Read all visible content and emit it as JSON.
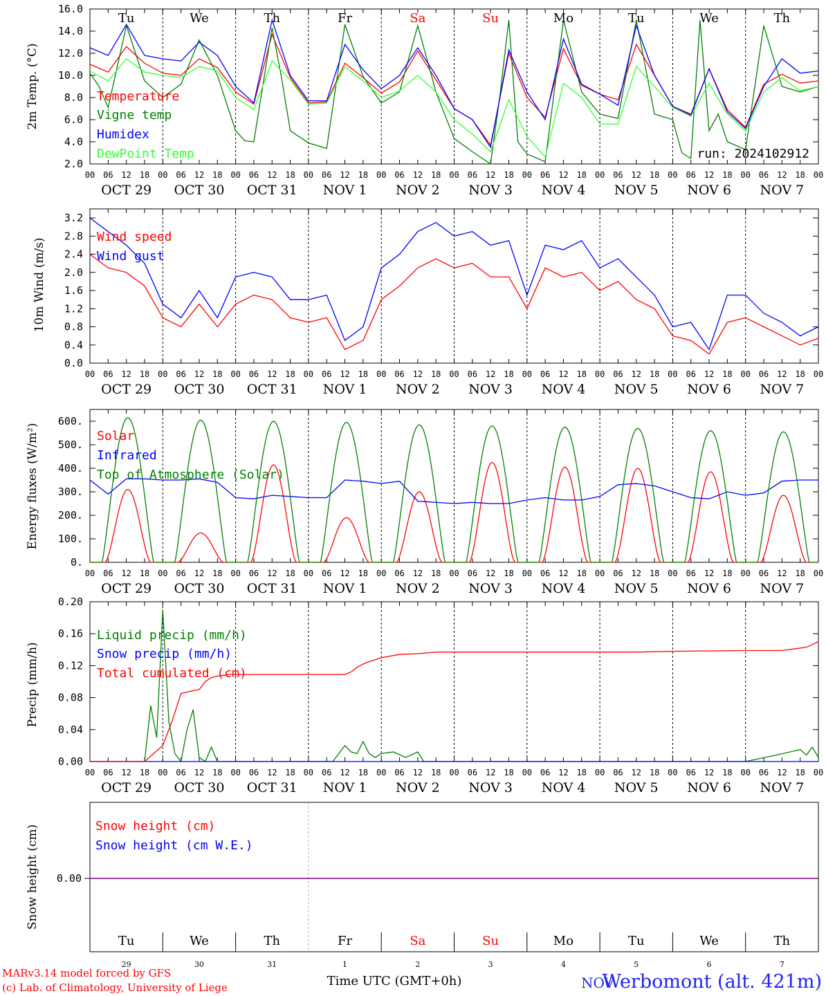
{
  "days": [
    {
      "abbr": "Tu",
      "date": "OCT 29",
      "num": "29",
      "weekend": false
    },
    {
      "abbr": "We",
      "date": "OCT 30",
      "num": "30",
      "weekend": false
    },
    {
      "abbr": "Th",
      "date": "OCT 31",
      "num": "31",
      "weekend": false
    },
    {
      "abbr": "Fr",
      "date": "NOV  1",
      "num": "1",
      "weekend": false
    },
    {
      "abbr": "Sa",
      "date": "NOV  2",
      "num": "2",
      "weekend": true
    },
    {
      "abbr": "Su",
      "date": "NOV  3",
      "num": "3",
      "weekend": true
    },
    {
      "abbr": "Mo",
      "date": "NOV  4",
      "num": "4",
      "weekend": false
    },
    {
      "abbr": "Tu",
      "date": "NOV  5",
      "num": "5",
      "weekend": false
    },
    {
      "abbr": "We",
      "date": "NOV  6",
      "num": "6",
      "weekend": false
    },
    {
      "abbr": "Th",
      "date": "NOV  7",
      "num": "7",
      "weekend": false
    }
  ],
  "hour_ticks": [
    "00",
    "06",
    "12",
    "18"
  ],
  "colors": {
    "red": "#ff0000",
    "green": "#008000",
    "blue": "#0000ff",
    "lightgreen": "#33ff33",
    "purple": "#7f007f",
    "weekend": "#ff0000"
  },
  "run_label": "run: 2024102912",
  "x_axis_title": "Time UTC (GMT+0h)",
  "footer": {
    "line1": "MARv3.14 model forced by GFS",
    "line2": "(c) Lab. of Climatology, University of Liege"
  },
  "station": "Werbomont (alt. 421m)",
  "station_overlap": "NOV",
  "chart_data": [
    {
      "id": "temp",
      "type": "line",
      "ylabel": "2m Temp. (°C)",
      "ylim": [
        2,
        16
      ],
      "yticks": [
        "16.0",
        "14.0",
        "12.0",
        "10.0",
        "8.0",
        "6.0",
        "4.0",
        "2.0"
      ],
      "x_unit": "hours from OCT 29 00 UTC",
      "series": [
        {
          "name": "Temperature",
          "color": "red",
          "x": [
            0,
            6,
            12,
            18,
            24,
            30,
            36,
            42,
            48,
            54,
            60,
            66,
            72,
            78,
            84,
            90,
            96,
            102,
            108,
            114,
            120,
            126,
            132,
            138,
            144,
            150,
            156,
            162,
            168,
            174,
            180,
            186,
            192,
            198,
            204,
            210,
            216,
            222,
            228,
            234,
            240
          ],
          "values": [
            11.0,
            10.3,
            12.6,
            11.1,
            10.2,
            10.0,
            11.5,
            10.7,
            8.5,
            7.4,
            13.7,
            9.8,
            7.5,
            7.6,
            11.1,
            9.8,
            8.4,
            9.4,
            12.2,
            9.6,
            7.0,
            6.0,
            3.7,
            12.0,
            8.0,
            6.2,
            12.4,
            9.1,
            8.3,
            7.8,
            12.8,
            10.0,
            7.2,
            6.5,
            10.6,
            6.9,
            5.3,
            9.2,
            10.1,
            9.3,
            9.5
          ]
        },
        {
          "name": "Vigne temp",
          "color": "green",
          "x": [
            0,
            3,
            6,
            12,
            18,
            24,
            30,
            36,
            42,
            48,
            51,
            54,
            60,
            63,
            66,
            72,
            78,
            84,
            90,
            96,
            102,
            108,
            114,
            120,
            126,
            132,
            135,
            138,
            141,
            144,
            150,
            156,
            162,
            168,
            174,
            180,
            186,
            192,
            195,
            198,
            201,
            204,
            207,
            210,
            216,
            222,
            228,
            234,
            240
          ],
          "values": [
            10.2,
            9.0,
            7.1,
            14.5,
            9.5,
            8.0,
            9.2,
            13.2,
            10.0,
            5.0,
            4.1,
            4.0,
            14.3,
            10.0,
            5.0,
            3.9,
            3.4,
            14.6,
            9.9,
            7.5,
            8.5,
            14.5,
            8.5,
            4.3,
            3.1,
            2.0,
            8.0,
            15.0,
            4.0,
            2.9,
            2.2,
            15.0,
            8.5,
            6.5,
            6.1,
            15.0,
            6.5,
            6.0,
            3.0,
            2.5,
            15.0,
            5.0,
            6.5,
            4.0,
            3.3,
            14.5,
            9.0,
            8.5,
            9.0
          ]
        },
        {
          "name": "Humidex",
          "color": "blue",
          "x": [
            0,
            6,
            12,
            18,
            24,
            30,
            36,
            42,
            48,
            54,
            60,
            66,
            72,
            78,
            84,
            90,
            96,
            102,
            108,
            114,
            120,
            126,
            132,
            138,
            144,
            150,
            156,
            162,
            168,
            174,
            180,
            186,
            192,
            198,
            204,
            210,
            216,
            222,
            228,
            234,
            240
          ],
          "values": [
            12.5,
            11.8,
            14.6,
            11.8,
            11.5,
            11.3,
            13.0,
            11.8,
            9.0,
            7.5,
            15.0,
            10.0,
            7.7,
            7.7,
            12.8,
            10.5,
            8.8,
            10.0,
            12.5,
            10.0,
            7.0,
            6.0,
            3.5,
            12.3,
            8.5,
            6.0,
            13.3,
            9.2,
            8.3,
            7.3,
            14.5,
            10.0,
            7.2,
            6.4,
            10.6,
            6.7,
            5.2,
            9.0,
            11.5,
            10.2,
            10.4
          ]
        },
        {
          "name": "DewPoint Temp",
          "color": "lightgreen",
          "x": [
            0,
            6,
            12,
            18,
            24,
            30,
            36,
            42,
            48,
            54,
            60,
            66,
            72,
            78,
            84,
            90,
            96,
            102,
            108,
            114,
            120,
            126,
            132,
            138,
            144,
            150,
            156,
            162,
            168,
            174,
            180,
            186,
            192,
            198,
            204,
            210,
            216,
            222,
            228,
            234,
            240
          ],
          "values": [
            10.4,
            9.5,
            11.5,
            10.3,
            10.0,
            9.8,
            10.8,
            10.4,
            8.0,
            6.9,
            11.3,
            9.6,
            7.4,
            7.5,
            10.8,
            9.5,
            8.0,
            8.6,
            10.0,
            8.5,
            6.0,
            4.7,
            3.1,
            7.8,
            4.5,
            2.6,
            9.3,
            8.0,
            5.6,
            5.6,
            10.8,
            9.0,
            7.1,
            6.3,
            9.3,
            6.5,
            5.0,
            8.5,
            9.8,
            8.6,
            9.0
          ]
        }
      ]
    },
    {
      "id": "wind",
      "type": "line",
      "ylabel": "10m Wind (m/s)",
      "ylim": [
        0,
        3.4
      ],
      "yticks": [
        "3.2",
        "2.8",
        "2.4",
        "2.0",
        "1.6",
        "1.2",
        "0.8",
        "0.4",
        "0.0"
      ],
      "x_unit": "hours from OCT 29 00 UTC",
      "series": [
        {
          "name": "Wind speed",
          "color": "red",
          "x": [
            0,
            6,
            12,
            18,
            24,
            30,
            36,
            42,
            48,
            54,
            60,
            66,
            72,
            78,
            84,
            90,
            96,
            102,
            108,
            114,
            120,
            126,
            132,
            138,
            144,
            150,
            156,
            162,
            168,
            174,
            180,
            186,
            192,
            198,
            204,
            210,
            216,
            222,
            228,
            234,
            240
          ],
          "values": [
            2.4,
            2.1,
            2.0,
            1.7,
            1.0,
            0.8,
            1.3,
            0.8,
            1.3,
            1.5,
            1.4,
            1.0,
            0.9,
            1.0,
            0.3,
            0.5,
            1.4,
            1.7,
            2.1,
            2.3,
            2.1,
            2.2,
            1.9,
            1.9,
            1.2,
            2.1,
            1.9,
            2.0,
            1.6,
            1.8,
            1.4,
            1.2,
            0.6,
            0.5,
            0.2,
            0.9,
            1.0,
            0.8,
            0.6,
            0.4,
            0.55
          ]
        },
        {
          "name": "Wind gust",
          "color": "blue",
          "x": [
            0,
            6,
            12,
            18,
            24,
            30,
            36,
            42,
            48,
            54,
            60,
            66,
            72,
            78,
            84,
            90,
            96,
            102,
            108,
            114,
            120,
            126,
            132,
            138,
            144,
            150,
            156,
            162,
            168,
            174,
            180,
            186,
            192,
            198,
            204,
            210,
            216,
            222,
            228,
            234,
            240
          ],
          "values": [
            3.2,
            2.9,
            2.6,
            2.2,
            1.3,
            1.0,
            1.6,
            1.0,
            1.9,
            2.0,
            1.9,
            1.4,
            1.4,
            1.5,
            0.5,
            0.8,
            2.1,
            2.4,
            2.9,
            3.1,
            2.8,
            2.9,
            2.6,
            2.7,
            1.5,
            2.6,
            2.5,
            2.7,
            2.1,
            2.3,
            1.9,
            1.5,
            0.8,
            0.9,
            0.3,
            1.5,
            1.5,
            1.1,
            0.9,
            0.6,
            0.8
          ]
        }
      ]
    },
    {
      "id": "energy",
      "type": "line",
      "ylabel": "Energy fluxes (W/m²)",
      "ylim": [
        0,
        650
      ],
      "yticks": [
        "600.",
        "500.",
        "400.",
        "300.",
        "200.",
        "100.",
        "0."
      ],
      "x_unit": "hours from OCT 29 00 UTC",
      "series": [
        {
          "name": "Solar",
          "color": "red",
          "daily_peaks": [
            310,
            125,
            415,
            190,
            300,
            425,
            405,
            400,
            385,
            285
          ]
        },
        {
          "name": "Infrared",
          "color": "blue",
          "x": [
            0,
            6,
            12,
            18,
            24,
            30,
            36,
            42,
            48,
            54,
            60,
            66,
            72,
            78,
            84,
            90,
            96,
            102,
            108,
            114,
            120,
            126,
            132,
            138,
            144,
            150,
            156,
            162,
            168,
            174,
            180,
            186,
            192,
            198,
            204,
            210,
            216,
            222,
            228,
            234,
            240
          ],
          "values": [
            350,
            290,
            355,
            355,
            350,
            350,
            355,
            340,
            275,
            270,
            285,
            280,
            275,
            275,
            350,
            345,
            335,
            345,
            260,
            255,
            250,
            255,
            250,
            250,
            265,
            275,
            265,
            265,
            280,
            330,
            335,
            325,
            300,
            275,
            270,
            300,
            285,
            295,
            345,
            350,
            350
          ]
        },
        {
          "name": "Top of Atmosphere (Solar)",
          "color": "green",
          "daily_peaks": [
            615,
            605,
            600,
            595,
            585,
            580,
            575,
            570,
            560,
            555
          ]
        }
      ]
    },
    {
      "id": "precip",
      "type": "line",
      "ylabel": "Precip (mm/h)",
      "ylim": [
        0,
        0.2
      ],
      "yticks": [
        "0.20",
        "0.16",
        "0.12",
        "0.08",
        "0.04",
        "0.00"
      ],
      "x_unit": "hours from OCT 29 00 UTC",
      "series": [
        {
          "name": "Liquid precip (mm/h)",
          "color": "green",
          "x": [
            0,
            18,
            20,
            22,
            24,
            26,
            28,
            30,
            32,
            34,
            36,
            38,
            40,
            42,
            44,
            48,
            72,
            80,
            84,
            86,
            88,
            90,
            92,
            94,
            96,
            100,
            104,
            108,
            110,
            112,
            116,
            120,
            216,
            226,
            234,
            236,
            238,
            240
          ],
          "values": [
            0,
            0,
            0.07,
            0.03,
            0.19,
            0.05,
            0.01,
            0.0,
            0.04,
            0.065,
            0.005,
            0.0,
            0.018,
            0.0,
            0.0,
            0.0,
            0.0,
            0.0,
            0.02,
            0.012,
            0.01,
            0.025,
            0.01,
            0.005,
            0.01,
            0.012,
            0.005,
            0.012,
            0.0,
            0.0,
            0.0,
            0.0,
            0.0,
            0.008,
            0.015,
            0.008,
            0.018,
            0.005
          ]
        },
        {
          "name": "Snow precip (mm/h)",
          "color": "blue",
          "x": [
            0,
            240
          ],
          "values": [
            0,
            0
          ]
        },
        {
          "name": "Total cumulated (cm)",
          "color": "red",
          "x": [
            0,
            18,
            21,
            24,
            27,
            30,
            33,
            36,
            38,
            40,
            42,
            44,
            46,
            48,
            60,
            72,
            84,
            86,
            88,
            90,
            92,
            96,
            102,
            108,
            114,
            120,
            150,
            180,
            192,
            216,
            228,
            236,
            240
          ],
          "values": [
            0,
            0,
            0.01,
            0.02,
            0.05,
            0.085,
            0.088,
            0.09,
            0.1,
            0.105,
            0.107,
            0.108,
            0.109,
            0.109,
            0.109,
            0.109,
            0.109,
            0.112,
            0.118,
            0.122,
            0.125,
            0.13,
            0.134,
            0.135,
            0.137,
            0.137,
            0.137,
            0.137,
            0.138,
            0.139,
            0.139,
            0.143,
            0.15
          ]
        }
      ]
    },
    {
      "id": "snow",
      "type": "line",
      "ylabel": "Snow height (cm)",
      "ytick": "0.00",
      "series": [
        {
          "name": "Snow height (cm)",
          "color": "red",
          "x": [
            0,
            240
          ],
          "values": [
            0,
            0
          ]
        },
        {
          "name": "Snow height (cm W.E.)",
          "color": "blue",
          "x": [
            0,
            240
          ],
          "values": [
            0,
            0
          ]
        }
      ]
    }
  ]
}
